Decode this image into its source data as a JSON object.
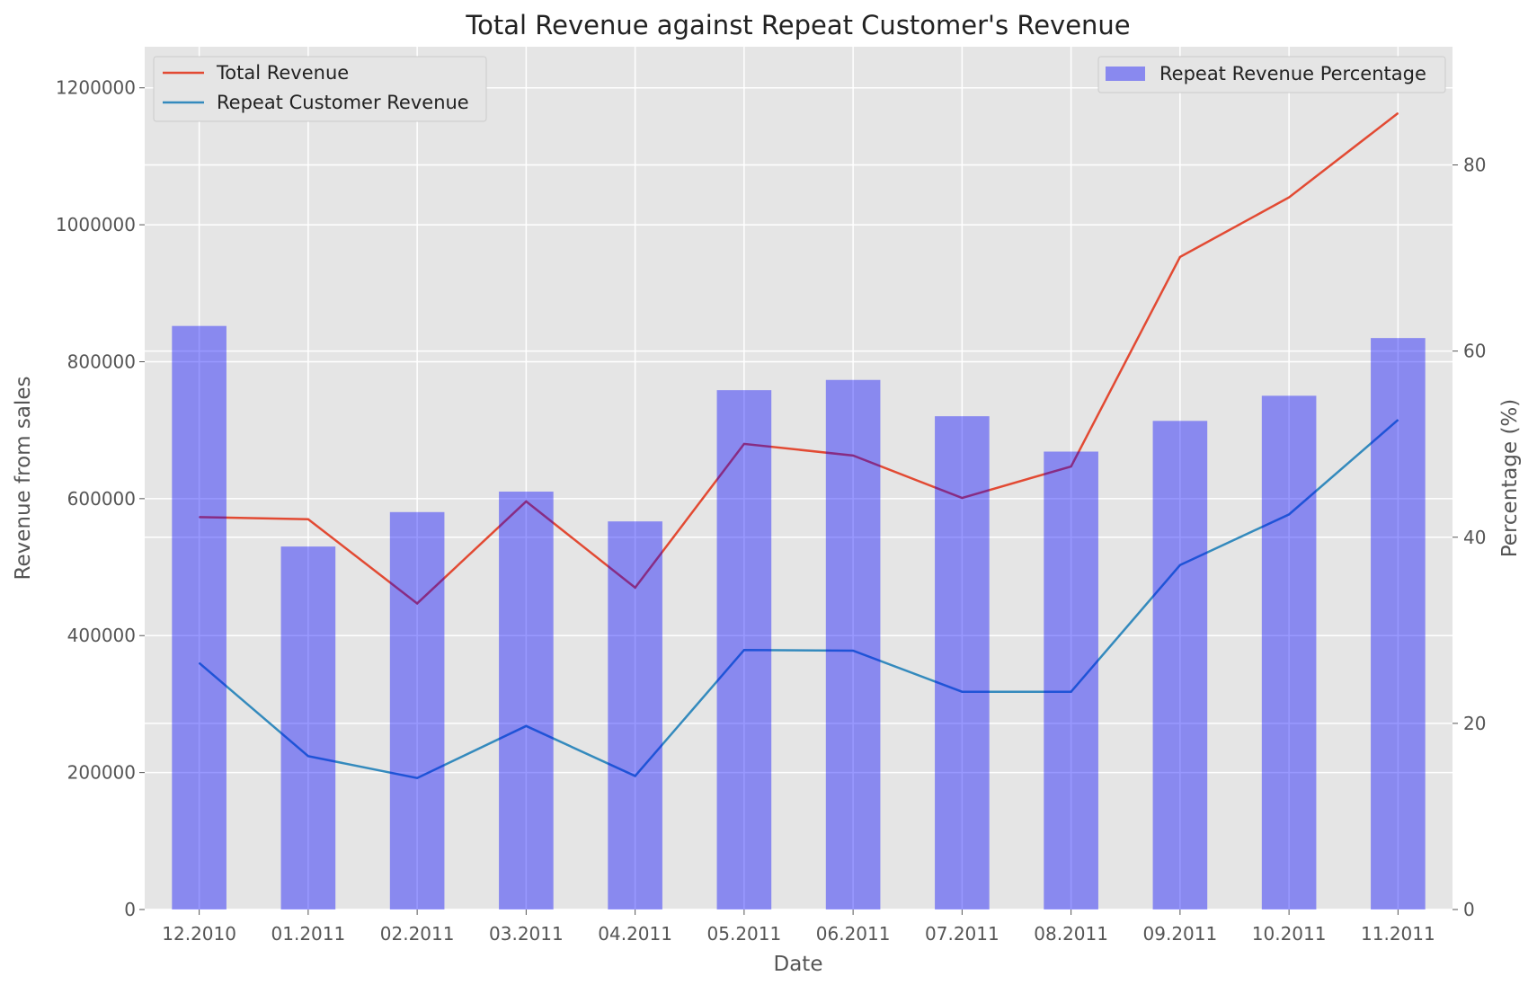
{
  "chart_data": {
    "type": "bar+line",
    "title": "Total Revenue against Repeat Customer's Revenue",
    "xlabel": "Date",
    "ylabel": "Revenue from sales",
    "y2label": "Percentage (%)",
    "categories": [
      "12.2010",
      "01.2011",
      "02.2011",
      "03.2011",
      "04.2011",
      "05.2011",
      "06.2011",
      "07.2011",
      "08.2011",
      "09.2011",
      "10.2011",
      "11.2011"
    ],
    "ylim": [
      0,
      1260000
    ],
    "yticks": [
      0,
      200000,
      400000,
      600000,
      800000,
      1000000,
      1200000
    ],
    "y2lim": [
      0,
      92.7
    ],
    "y2ticks": [
      0,
      20,
      40,
      60,
      80
    ],
    "grid": true,
    "series": [
      {
        "name": "Total Revenue",
        "type": "line",
        "axis": "left",
        "color": "#e24a33",
        "values": [
          573000,
          570000,
          447000,
          596000,
          470000,
          680000,
          663000,
          601000,
          647000,
          953000,
          1040000,
          1163000
        ]
      },
      {
        "name": "Repeat Customer Revenue",
        "type": "line",
        "axis": "left",
        "color": "#348abd",
        "values": [
          360000,
          224000,
          192000,
          268000,
          195000,
          379000,
          378000,
          318000,
          318000,
          503000,
          577000,
          715000
        ]
      },
      {
        "name": "Repeat Revenue Percentage",
        "type": "bar",
        "axis": "right",
        "color": "#0000ff",
        "values": [
          62.7,
          39.0,
          42.7,
          44.9,
          41.7,
          55.8,
          56.9,
          53.0,
          49.2,
          52.5,
          55.2,
          61.4
        ]
      }
    ],
    "legends": [
      {
        "position": "upper-left",
        "entries": [
          "Total Revenue",
          "Repeat Customer Revenue"
        ]
      },
      {
        "position": "upper-right",
        "entries": [
          "Repeat Revenue Percentage"
        ]
      }
    ]
  }
}
